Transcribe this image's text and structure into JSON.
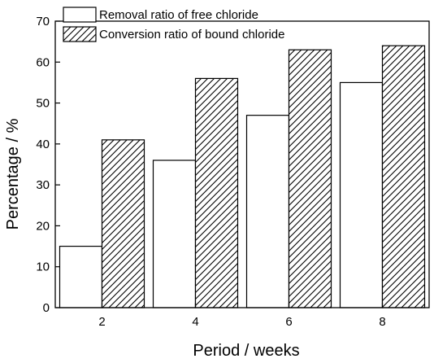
{
  "chart_data": {
    "type": "bar",
    "title": "",
    "xlabel": "Period / weeks",
    "ylabel": "Percentage / %",
    "categories": [
      "2",
      "4",
      "6",
      "8"
    ],
    "ylim": [
      0,
      70
    ],
    "yticks": [
      "0",
      "10",
      "20",
      "30",
      "40",
      "50",
      "60",
      "70"
    ],
    "grid": false,
    "legend_position": "top-left",
    "series": [
      {
        "name": "Removal ratio of free chloride",
        "values": [
          15,
          36,
          47,
          55
        ],
        "fill": "#ffffff",
        "pattern": "none"
      },
      {
        "name": "Conversion ratio of bound chloride",
        "values": [
          41,
          56,
          63,
          64
        ],
        "fill": "#ffffff",
        "pattern": "diagonal-hatch"
      }
    ]
  }
}
